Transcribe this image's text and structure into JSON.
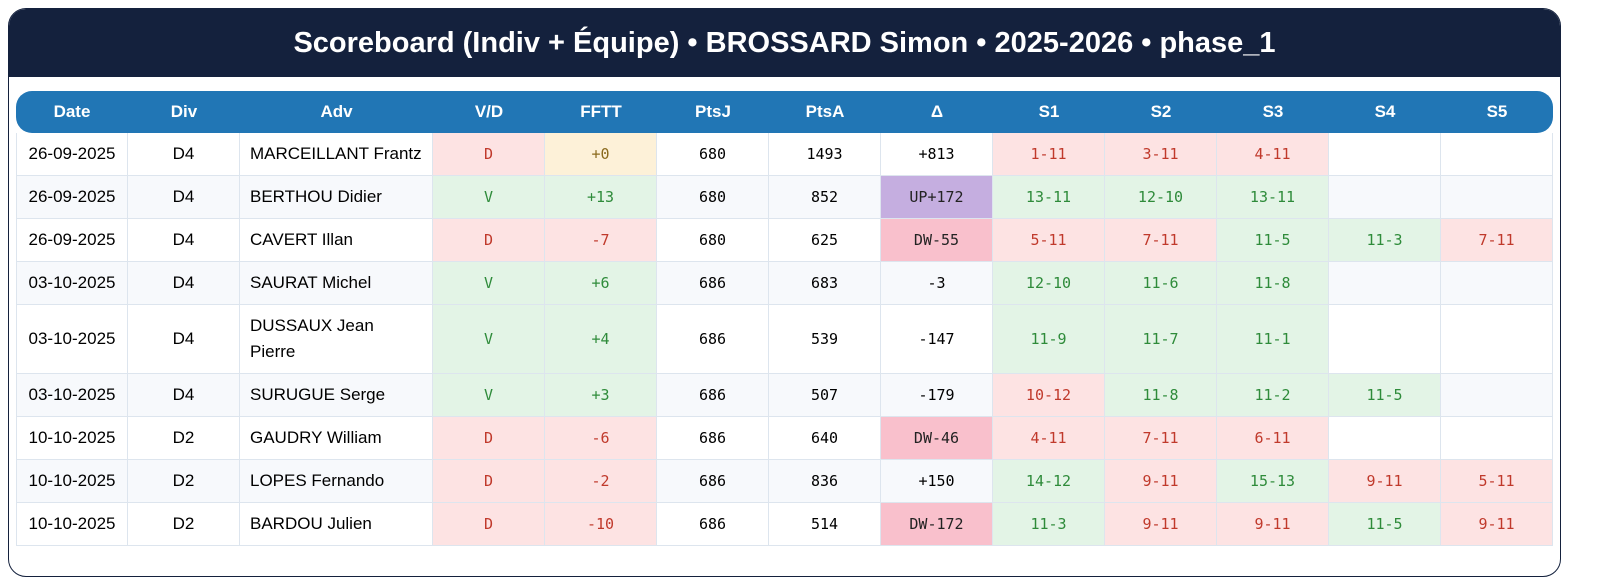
{
  "header": {
    "title": "Scoreboard (Indiv + Équipe) • BROSSARD Simon • 2025-2026 • phase_1"
  },
  "table": {
    "columns": [
      "Date",
      "Div",
      "Adv",
      "V/D",
      "FFTT",
      "PtsJ",
      "PtsA",
      "Δ",
      "S1",
      "S2",
      "S3",
      "S4",
      "S5"
    ],
    "rows": [
      [
        "26-09-2025",
        "D4",
        "MARCEILLANT Frantz",
        "D",
        "+0",
        "680",
        "1493",
        "+813",
        "1-11",
        "3-11",
        "4-11",
        null,
        null
      ],
      [
        "26-09-2025",
        "D4",
        "BERTHOU Didier",
        "V",
        "+13",
        "680",
        "852",
        "UP+172",
        "13-11",
        "12-10",
        "13-11",
        null,
        null
      ],
      [
        "26-09-2025",
        "D4",
        "CAVERT Illan",
        "D",
        "-7",
        "680",
        "625",
        "DW-55",
        "5-11",
        "7-11",
        "11-5",
        "11-3",
        "7-11"
      ],
      [
        "03-10-2025",
        "D4",
        "SAURAT Michel",
        "V",
        "+6",
        "686",
        "683",
        "-3",
        "12-10",
        "11-6",
        "11-8",
        null,
        null
      ],
      [
        "03-10-2025",
        "D4",
        "DUSSAUX Jean Pierre",
        "V",
        "+4",
        "686",
        "539",
        "-147",
        "11-9",
        "11-7",
        "11-1",
        null,
        null
      ],
      [
        "03-10-2025",
        "D4",
        "SURUGUE Serge",
        "V",
        "+3",
        "686",
        "507",
        "-179",
        "10-12",
        "11-8",
        "11-2",
        "11-5",
        null
      ],
      [
        "10-10-2025",
        "D2",
        "GAUDRY William",
        "D",
        "-6",
        "686",
        "640",
        "DW-46",
        "4-11",
        "7-11",
        "6-11",
        null,
        null
      ],
      [
        "10-10-2025",
        "D2",
        "LOPES Fernando",
        "D",
        "-2",
        "686",
        "836",
        "+150",
        "14-12",
        "9-11",
        "15-13",
        "9-11",
        "5-11"
      ],
      [
        "10-10-2025",
        "D2",
        "BARDOU Julien",
        "D",
        "-10",
        "686",
        "514",
        "DW-172",
        "11-3",
        "9-11",
        "9-11",
        "11-5",
        "9-11"
      ]
    ]
  }
}
